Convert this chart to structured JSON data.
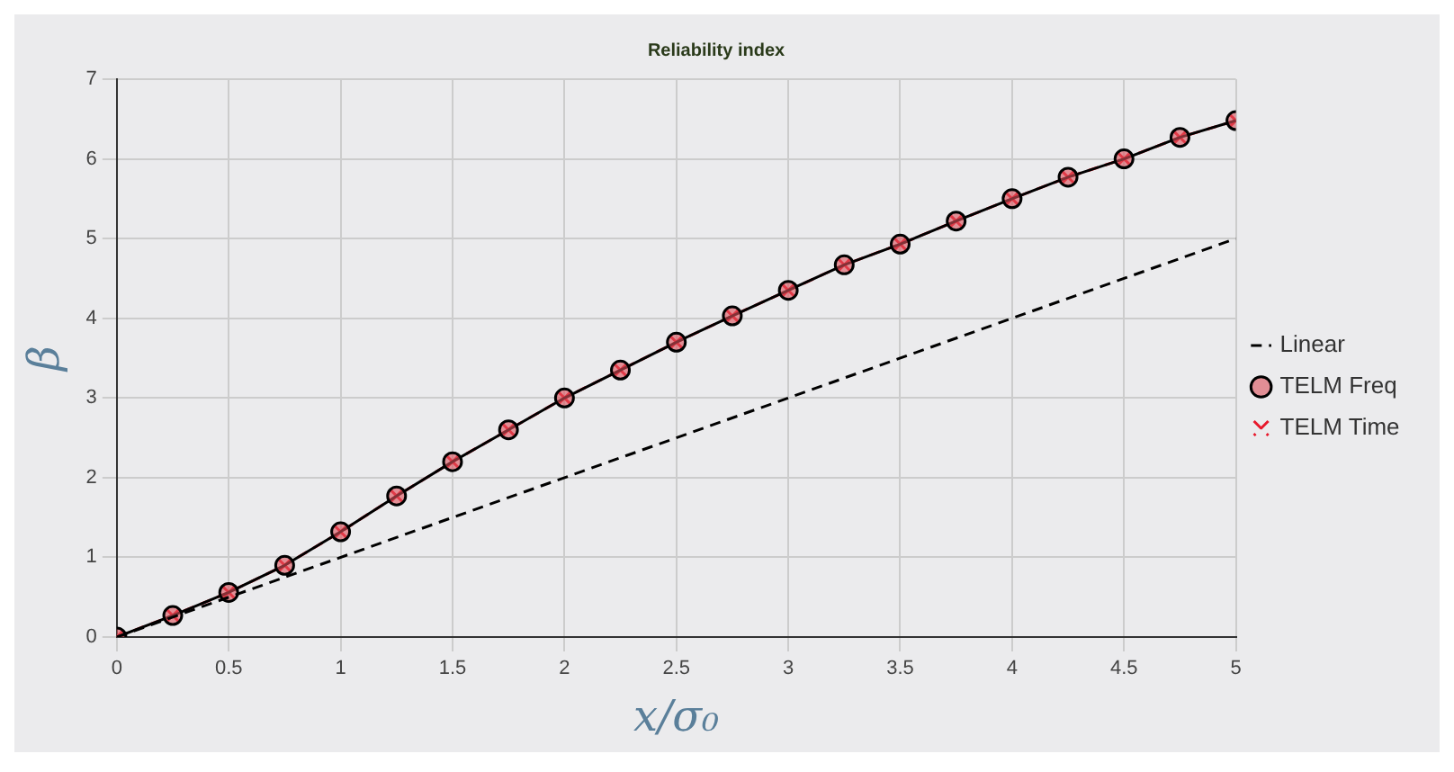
{
  "chart_data": {
    "type": "line",
    "title": "Reliability index",
    "xlabel": "x/σ₀",
    "ylabel": "β",
    "x": [
      0,
      0.25,
      0.5,
      0.75,
      1,
      1.25,
      1.5,
      1.75,
      2,
      2.25,
      2.5,
      2.75,
      3,
      3.25,
      3.5,
      3.75,
      4,
      4.25,
      4.5,
      4.75,
      5
    ],
    "series": [
      {
        "name": "Linear",
        "color": "#000000",
        "line_style": "dashed",
        "x": [
          0,
          5
        ],
        "values": [
          0,
          5
        ]
      },
      {
        "name": "TELM Freq",
        "color": "#000000",
        "line_style": "solid",
        "marker": "circle",
        "values": [
          0,
          0.27,
          0.56,
          0.9,
          1.32,
          1.77,
          2.2,
          2.6,
          3.0,
          3.35,
          3.7,
          4.03,
          4.35,
          4.67,
          4.93,
          5.22,
          5.5,
          5.77,
          6.0,
          6.27,
          6.48
        ]
      },
      {
        "name": "TELM Time",
        "color": "#e8192c",
        "line_style": "dashed",
        "marker": "cross",
        "values": [
          0,
          0.27,
          0.56,
          0.9,
          1.32,
          1.77,
          2.2,
          2.6,
          3.0,
          3.35,
          3.7,
          4.03,
          4.35,
          4.67,
          4.93,
          5.22,
          5.5,
          5.77,
          6.0,
          6.27,
          6.48
        ]
      }
    ],
    "xlim": [
      0,
      5
    ],
    "xticks": [
      0,
      0.5,
      1,
      1.5,
      2,
      2.5,
      3,
      3.5,
      4,
      4.5,
      5
    ],
    "ylim": [
      0,
      7
    ],
    "yticks": [
      0,
      1,
      2,
      3,
      4,
      5,
      6,
      7
    ],
    "grid": true,
    "legend": "right"
  }
}
